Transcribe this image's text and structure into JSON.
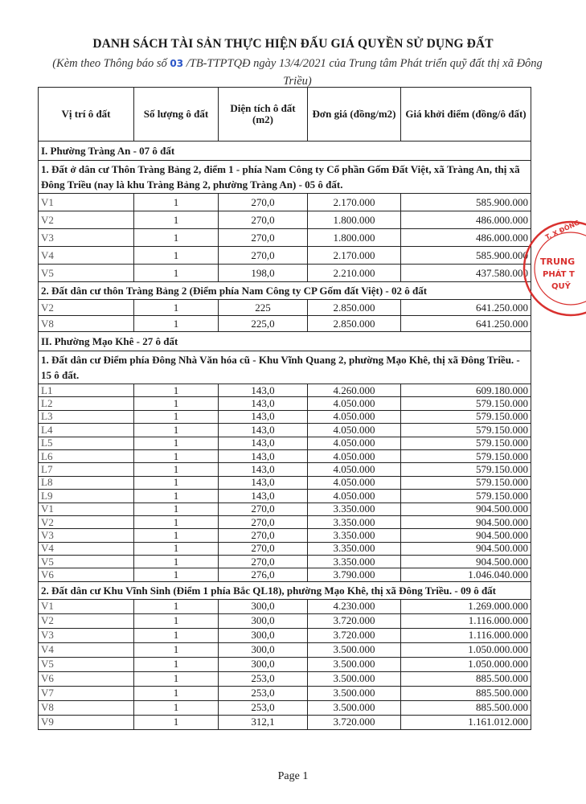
{
  "title": "DANH SÁCH TÀI SẢN THỰC HIỆN ĐẤU GIÁ QUYỀN SỬ DỤNG ĐẤT",
  "subtitle": {
    "prefix": "(Kèm theo Thông báo số ",
    "number": "03",
    "suffix": " /TB-TTPTQĐ ngày 13/4/2021 của Trung tâm Phát triển quỹ đất thị xã Đông Triều)"
  },
  "table": {
    "headers": [
      "Vị trí ô đất",
      "Số lượng ô đất",
      "Diện tích ô đất (m2)",
      "Đơn giá (đồng/m2)",
      "Giá khởi điểm (đồng/ô đất)"
    ],
    "sections": [
      {
        "title": "I. Phường Tràng An - 07 ô đất",
        "groups": [
          {
            "title": "1. Đất ở dân cư Thôn Tràng Bảng 2, điểm 1 - phía Nam Công ty Cổ phần Gốm Đất Việt, xã Tràng An, thị xã Đông Triều (nay là khu Tràng Bảng 2, phường Tràng An) - 05 ô đất.",
            "rows": [
              [
                "V1",
                "1",
                "270,0",
                "2.170.000",
                "585.900.000"
              ],
              [
                "V2",
                "1",
                "270,0",
                "1.800.000",
                "486.000.000"
              ],
              [
                "V3",
                "1",
                "270,0",
                "1.800.000",
                "486.000.000"
              ],
              [
                "V4",
                "1",
                "270,0",
                "2.170.000",
                "585.900.000"
              ],
              [
                "V5",
                "1",
                "198,0",
                "2.210.000",
                "437.580.000"
              ]
            ]
          },
          {
            "title": "2. Đất dân cư thôn Tràng Bảng 2 (Điểm phía Nam Công ty CP Gốm đất Việt) - 02 ô đất",
            "rows": [
              [
                "V2",
                "1",
                "225",
                "2.850.000",
                "641.250.000"
              ],
              [
                "V8",
                "1",
                "225,0",
                "2.850.000",
                "641.250.000"
              ]
            ]
          }
        ]
      },
      {
        "title": "II. Phường Mạo Khê - 27 ô đất",
        "groups": [
          {
            "title": "1. Đất dân cư Điểm phía Đông Nhà Văn hóa cũ - Khu Vĩnh Quang 2, phường Mạo Khê, thị xã Đông Triều. - 15 ô đất.",
            "rows": [
              [
                "L1",
                "1",
                "143,0",
                "4.260.000",
                "609.180.000"
              ],
              [
                "L2",
                "1",
                "143,0",
                "4.050.000",
                "579.150.000"
              ],
              [
                "L3",
                "1",
                "143,0",
                "4.050.000",
                "579.150.000"
              ],
              [
                "L4",
                "1",
                "143,0",
                "4.050.000",
                "579.150.000"
              ],
              [
                "L5",
                "1",
                "143,0",
                "4.050.000",
                "579.150.000"
              ],
              [
                "L6",
                "1",
                "143,0",
                "4.050.000",
                "579.150.000"
              ],
              [
                "L7",
                "1",
                "143,0",
                "4.050.000",
                "579.150.000"
              ],
              [
                "L8",
                "1",
                "143,0",
                "4.050.000",
                "579.150.000"
              ],
              [
                "L9",
                "1",
                "143,0",
                "4.050.000",
                "579.150.000"
              ],
              [
                "V1",
                "1",
                "270,0",
                "3.350.000",
                "904.500.000"
              ],
              [
                "V2",
                "1",
                "270,0",
                "3.350.000",
                "904.500.000"
              ],
              [
                "V3",
                "1",
                "270,0",
                "3.350.000",
                "904.500.000"
              ],
              [
                "V4",
                "1",
                "270,0",
                "3.350.000",
                "904.500.000"
              ],
              [
                "V5",
                "1",
                "270,0",
                "3.350.000",
                "904.500.000"
              ],
              [
                "V6",
                "1",
                "276,0",
                "3.790.000",
                "1.046.040.000"
              ]
            ]
          },
          {
            "title": "2. Đất dân cư Khu Vĩnh Sinh (Điểm 1 phía Bắc QL18), phường Mạo Khê, thị xã Đông Triều. - 09 ô đất",
            "rows": [
              [
                "V1",
                "1",
                "300,0",
                "4.230.000",
                "1.269.000.000"
              ],
              [
                "V2",
                "1",
                "300,0",
                "3.720.000",
                "1.116.000.000"
              ],
              [
                "V3",
                "1",
                "300,0",
                "3.720.000",
                "1.116.000.000"
              ],
              [
                "V4",
                "1",
                "300,0",
                "3.500.000",
                "1.050.000.000"
              ],
              [
                "V5",
                "1",
                "300,0",
                "3.500.000",
                "1.050.000.000"
              ],
              [
                "V6",
                "1",
                "253,0",
                "3.500.000",
                "885.500.000"
              ],
              [
                "V7",
                "1",
                "253,0",
                "3.500.000",
                "885.500.000"
              ],
              [
                "V8",
                "1",
                "253,0",
                "3.500.000",
                "885.500.000"
              ],
              [
                "V9",
                "1",
                "312,1",
                "3.720.000",
                "1.161.012.000"
              ]
            ]
          }
        ]
      }
    ]
  },
  "stamp": {
    "text": [
      "T. X ĐÔNG",
      "TRUNG",
      "PHÁT T",
      "QUỸ"
    ],
    "color": "#d9312f"
  },
  "footer": {
    "page": "Page 1"
  }
}
